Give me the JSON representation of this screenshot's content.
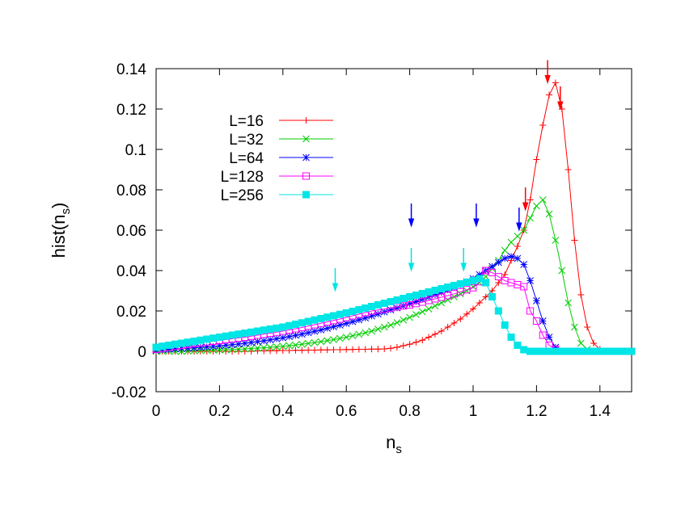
{
  "chart_data": {
    "type": "line",
    "xlabel": "n",
    "xlabel_sub": "s",
    "ylabel": "hist(n",
    "ylabel_sub": "s",
    "ylabel_close": ")",
    "xlim": [
      0,
      1.5
    ],
    "ylim": [
      -0.02,
      0.14
    ],
    "x_ticks": [
      {
        "value": 0,
        "label": "0"
      },
      {
        "value": 0.2,
        "label": "0.2"
      },
      {
        "value": 0.4,
        "label": "0.4"
      },
      {
        "value": 0.6,
        "label": "0.6"
      },
      {
        "value": 0.8,
        "label": "0.8"
      },
      {
        "value": 1.0,
        "label": "1"
      },
      {
        "value": 1.2,
        "label": "1.2"
      },
      {
        "value": 1.4,
        "label": "1.4"
      }
    ],
    "y_ticks": [
      {
        "value": -0.02,
        "label": "-0.02"
      },
      {
        "value": 0,
        "label": "0"
      },
      {
        "value": 0.02,
        "label": "0.02"
      },
      {
        "value": 0.04,
        "label": "0.04"
      },
      {
        "value": 0.06,
        "label": "0.06"
      },
      {
        "value": 0.08,
        "label": "0.08"
      },
      {
        "value": 0.1,
        "label": "0.1"
      },
      {
        "value": 0.12,
        "label": "0.12"
      },
      {
        "value": 0.14,
        "label": "0.14"
      }
    ],
    "grid": false,
    "legend_position": "top-left",
    "series": [
      {
        "name": "L=16",
        "color": "#ff0000",
        "marker": "plus",
        "x": [
          0.0,
          0.02,
          0.04,
          0.06,
          0.08,
          0.1,
          0.12,
          0.14,
          0.16,
          0.18,
          0.2,
          0.22,
          0.24,
          0.26,
          0.28,
          0.3,
          0.32,
          0.34,
          0.36,
          0.38,
          0.4,
          0.42,
          0.44,
          0.46,
          0.48,
          0.5,
          0.52,
          0.54,
          0.56,
          0.58,
          0.6,
          0.62,
          0.64,
          0.66,
          0.68,
          0.7,
          0.72,
          0.74,
          0.76,
          0.78,
          0.8,
          0.82,
          0.84,
          0.86,
          0.88,
          0.9,
          0.92,
          0.94,
          0.96,
          0.98,
          1.0,
          1.02,
          1.04,
          1.06,
          1.08,
          1.1,
          1.12,
          1.14,
          1.16,
          1.18,
          1.2,
          1.22,
          1.24,
          1.26,
          1.28,
          1.3,
          1.32,
          1.34,
          1.36,
          1.38,
          1.4,
          1.42,
          1.44,
          1.46,
          1.48,
          1.5
        ],
        "y": [
          0,
          0,
          0,
          0,
          0,
          0,
          0,
          0,
          0,
          0,
          0,
          0,
          0,
          0,
          0,
          0,
          0.0002,
          0.0002,
          0.0003,
          0.0003,
          0.0004,
          0.0004,
          0.0005,
          0.0005,
          0.0006,
          0.0006,
          0.0007,
          0.0007,
          0.0008,
          0.0008,
          0.0009,
          0.0009,
          0.001,
          0.001,
          0.0011,
          0.0011,
          0.0012,
          0.0015,
          0.002,
          0.0028,
          0.0035,
          0.0045,
          0.0055,
          0.007,
          0.0085,
          0.01,
          0.012,
          0.014,
          0.016,
          0.0185,
          0.021,
          0.024,
          0.027,
          0.03,
          0.034,
          0.038,
          0.045,
          0.052,
          0.06,
          0.075,
          0.095,
          0.112,
          0.127,
          0.133,
          0.12,
          0.09,
          0.055,
          0.028,
          0.012,
          0.004,
          0.001,
          0,
          0,
          0,
          0,
          0
        ]
      },
      {
        "name": "L=32",
        "color": "#00cc00",
        "marker": "cross",
        "x": [
          0.0,
          0.02,
          0.04,
          0.06,
          0.08,
          0.1,
          0.12,
          0.14,
          0.16,
          0.18,
          0.2,
          0.22,
          0.24,
          0.26,
          0.28,
          0.3,
          0.32,
          0.34,
          0.36,
          0.38,
          0.4,
          0.42,
          0.44,
          0.46,
          0.48,
          0.5,
          0.52,
          0.54,
          0.56,
          0.58,
          0.6,
          0.62,
          0.64,
          0.66,
          0.68,
          0.7,
          0.72,
          0.74,
          0.76,
          0.78,
          0.8,
          0.82,
          0.84,
          0.86,
          0.88,
          0.9,
          0.92,
          0.94,
          0.96,
          0.98,
          1.0,
          1.02,
          1.04,
          1.06,
          1.08,
          1.1,
          1.12,
          1.14,
          1.16,
          1.18,
          1.2,
          1.22,
          1.24,
          1.26,
          1.28,
          1.3,
          1.32,
          1.34,
          1.36,
          1.38,
          1.4,
          1.42,
          1.44,
          1.46,
          1.48,
          1.5
        ],
        "y": [
          0,
          0,
          0,
          0,
          0,
          0.0002,
          0.0003,
          0.0004,
          0.0005,
          0.0006,
          0.0007,
          0.0008,
          0.0009,
          0.001,
          0.0012,
          0.0014,
          0.0016,
          0.0018,
          0.002,
          0.0022,
          0.0025,
          0.0028,
          0.0031,
          0.0035,
          0.0039,
          0.0043,
          0.0048,
          0.0053,
          0.0058,
          0.0064,
          0.007,
          0.0077,
          0.0084,
          0.0092,
          0.01,
          0.011,
          0.012,
          0.013,
          0.0142,
          0.0155,
          0.0168,
          0.0182,
          0.0196,
          0.021,
          0.0225,
          0.024,
          0.0255,
          0.027,
          0.0285,
          0.03,
          0.032,
          0.034,
          0.037,
          0.041,
          0.045,
          0.05,
          0.054,
          0.057,
          0.06,
          0.066,
          0.072,
          0.075,
          0.068,
          0.055,
          0.04,
          0.024,
          0.012,
          0.004,
          0.001,
          0,
          0,
          0,
          0,
          0,
          0,
          0
        ]
      },
      {
        "name": "L=64",
        "color": "#0000ff",
        "marker": "star",
        "x": [
          0.0,
          0.02,
          0.04,
          0.06,
          0.08,
          0.1,
          0.12,
          0.14,
          0.16,
          0.18,
          0.2,
          0.22,
          0.24,
          0.26,
          0.28,
          0.3,
          0.32,
          0.34,
          0.36,
          0.38,
          0.4,
          0.42,
          0.44,
          0.46,
          0.48,
          0.5,
          0.52,
          0.54,
          0.56,
          0.58,
          0.6,
          0.62,
          0.64,
          0.66,
          0.68,
          0.7,
          0.72,
          0.74,
          0.76,
          0.78,
          0.8,
          0.82,
          0.84,
          0.86,
          0.88,
          0.9,
          0.92,
          0.94,
          0.96,
          0.98,
          1.0,
          1.02,
          1.04,
          1.06,
          1.08,
          1.1,
          1.12,
          1.14,
          1.16,
          1.18,
          1.2,
          1.22,
          1.24,
          1.26,
          1.28,
          1.3,
          1.32,
          1.34,
          1.36,
          1.38,
          1.4,
          1.42,
          1.44,
          1.46,
          1.48,
          1.5
        ],
        "y": [
          0.0005,
          0.0008,
          0.001,
          0.0012,
          0.0014,
          0.0016,
          0.0018,
          0.002,
          0.0022,
          0.0024,
          0.0027,
          0.003,
          0.0033,
          0.0036,
          0.004,
          0.0044,
          0.0048,
          0.0052,
          0.0057,
          0.0062,
          0.0067,
          0.0073,
          0.0079,
          0.0085,
          0.0092,
          0.0099,
          0.0106,
          0.0114,
          0.0122,
          0.013,
          0.0138,
          0.0147,
          0.0156,
          0.0165,
          0.0175,
          0.0185,
          0.0195,
          0.0205,
          0.0215,
          0.0225,
          0.0235,
          0.0246,
          0.0257,
          0.0268,
          0.028,
          0.0292,
          0.0304,
          0.0316,
          0.033,
          0.0345,
          0.036,
          0.038,
          0.04,
          0.042,
          0.044,
          0.046,
          0.047,
          0.046,
          0.043,
          0.035,
          0.025,
          0.015,
          0.007,
          0.002,
          0,
          0,
          0,
          0,
          0,
          0,
          0,
          0,
          0,
          0,
          0,
          0
        ]
      },
      {
        "name": "L=128",
        "color": "#ff00ff",
        "marker": "open-square",
        "x": [
          0.0,
          0.02,
          0.04,
          0.06,
          0.08,
          0.1,
          0.12,
          0.14,
          0.16,
          0.18,
          0.2,
          0.22,
          0.24,
          0.26,
          0.28,
          0.3,
          0.32,
          0.34,
          0.36,
          0.38,
          0.4,
          0.42,
          0.44,
          0.46,
          0.48,
          0.5,
          0.52,
          0.54,
          0.56,
          0.58,
          0.6,
          0.62,
          0.64,
          0.66,
          0.68,
          0.7,
          0.72,
          0.74,
          0.76,
          0.78,
          0.8,
          0.82,
          0.84,
          0.86,
          0.88,
          0.9,
          0.92,
          0.94,
          0.96,
          0.98,
          1.0,
          1.02,
          1.04,
          1.06,
          1.08,
          1.1,
          1.12,
          1.14,
          1.16,
          1.18,
          1.2,
          1.22,
          1.24,
          1.26,
          1.28,
          1.3,
          1.32,
          1.34,
          1.36,
          1.38,
          1.4,
          1.42,
          1.44,
          1.46,
          1.48,
          1.5
        ],
        "y": [
          0.001,
          0.0015,
          0.002,
          0.0025,
          0.003,
          0.0034,
          0.0038,
          0.0042,
          0.0046,
          0.005,
          0.0054,
          0.0058,
          0.0062,
          0.0066,
          0.007,
          0.0075,
          0.008,
          0.0085,
          0.009,
          0.0095,
          0.01,
          0.0106,
          0.0112,
          0.0118,
          0.0125,
          0.0132,
          0.0139,
          0.0146,
          0.0153,
          0.016,
          0.0168,
          0.0176,
          0.0184,
          0.0192,
          0.02,
          0.0205,
          0.021,
          0.0215,
          0.022,
          0.0225,
          0.023,
          0.0237,
          0.0244,
          0.0252,
          0.026,
          0.0268,
          0.0276,
          0.0285,
          0.0295,
          0.0305,
          0.0315,
          0.0345,
          0.04,
          0.039,
          0.037,
          0.035,
          0.034,
          0.033,
          0.032,
          0.02,
          0.015,
          0.008,
          0.003,
          0.001,
          0,
          0,
          0,
          0,
          0,
          0,
          0,
          0,
          0,
          0,
          0,
          0
        ]
      },
      {
        "name": "L=256",
        "color": "#00e5e5",
        "marker": "filled-square",
        "x": [
          0.0,
          0.02,
          0.04,
          0.06,
          0.08,
          0.1,
          0.12,
          0.14,
          0.16,
          0.18,
          0.2,
          0.22,
          0.24,
          0.26,
          0.28,
          0.3,
          0.32,
          0.34,
          0.36,
          0.38,
          0.4,
          0.42,
          0.44,
          0.46,
          0.48,
          0.5,
          0.52,
          0.54,
          0.56,
          0.58,
          0.6,
          0.62,
          0.64,
          0.66,
          0.68,
          0.7,
          0.72,
          0.74,
          0.76,
          0.78,
          0.8,
          0.82,
          0.84,
          0.86,
          0.88,
          0.9,
          0.92,
          0.94,
          0.96,
          0.98,
          1.0,
          1.02,
          1.04,
          1.06,
          1.08,
          1.1,
          1.12,
          1.14,
          1.16,
          1.18,
          1.2,
          1.22,
          1.24,
          1.26,
          1.28,
          1.3,
          1.32,
          1.34,
          1.36,
          1.38,
          1.4,
          1.42,
          1.44,
          1.46,
          1.48,
          1.5
        ],
        "y": [
          0.002,
          0.0025,
          0.003,
          0.0035,
          0.004,
          0.0045,
          0.005,
          0.0055,
          0.006,
          0.0065,
          0.007,
          0.0075,
          0.008,
          0.0085,
          0.009,
          0.0095,
          0.01,
          0.0105,
          0.011,
          0.0115,
          0.012,
          0.0127,
          0.0134,
          0.0141,
          0.0148,
          0.0155,
          0.0162,
          0.0169,
          0.0176,
          0.0183,
          0.019,
          0.0198,
          0.0206,
          0.0214,
          0.0222,
          0.023,
          0.0238,
          0.0246,
          0.0254,
          0.0262,
          0.027,
          0.0278,
          0.0286,
          0.0294,
          0.0302,
          0.031,
          0.0318,
          0.0326,
          0.0334,
          0.0342,
          0.035,
          0.036,
          0.034,
          0.027,
          0.02,
          0.013,
          0.007,
          0.003,
          0.0008,
          0,
          0,
          0,
          0,
          0,
          0,
          0,
          0,
          0,
          0,
          0,
          0,
          0,
          0,
          0,
          0,
          0
        ]
      }
    ],
    "arrows": [
      {
        "x": 1.235,
        "y_tip": 0.133,
        "color": "#ff0000"
      },
      {
        "x": 1.275,
        "y_tip": 0.12,
        "color": "#ff0000"
      },
      {
        "x": 1.165,
        "y_tip": 0.07,
        "color": "#ff0000"
      },
      {
        "x": 0.805,
        "y_tip": 0.062,
        "color": "#0000ff"
      },
      {
        "x": 1.01,
        "y_tip": 0.062,
        "color": "#0000ff"
      },
      {
        "x": 1.145,
        "y_tip": 0.06,
        "color": "#0000ff"
      },
      {
        "x": 0.565,
        "y_tip": 0.03,
        "color": "#00e5e5"
      },
      {
        "x": 0.805,
        "y_tip": 0.04,
        "color": "#00e5e5"
      },
      {
        "x": 0.97,
        "y_tip": 0.04,
        "color": "#00e5e5"
      }
    ]
  }
}
